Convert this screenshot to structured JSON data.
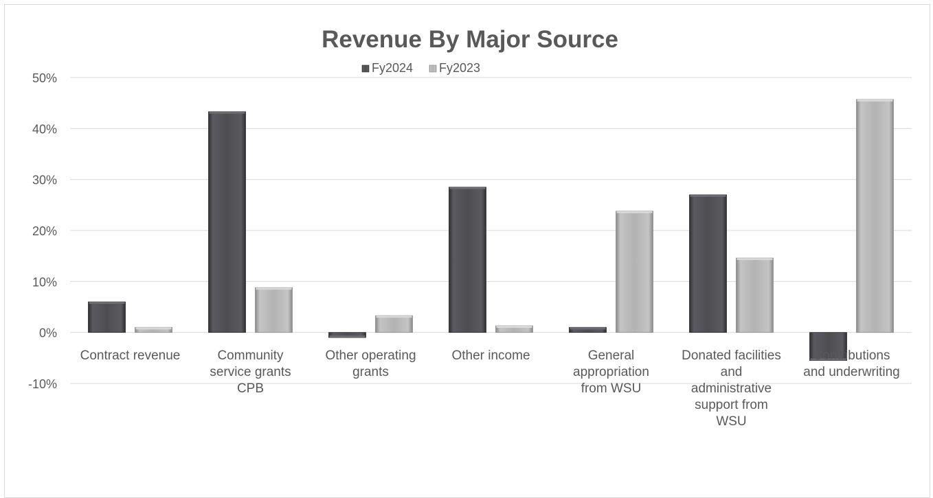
{
  "chart_data": {
    "type": "bar",
    "title": "Revenue By Major Source",
    "categories": [
      [
        "Contract revenue"
      ],
      [
        "Community",
        "service grants",
        "CPB"
      ],
      [
        "Other operating",
        "grants"
      ],
      [
        "Other income"
      ],
      [
        "General",
        "appropriation",
        "from WSU"
      ],
      [
        "Donated facilities",
        "and",
        "administrative",
        "support from",
        "WSU"
      ],
      [
        "Contributions",
        "and underwriting"
      ]
    ],
    "series": [
      {
        "name": "Fy2024",
        "values": [
          6.0,
          43.3,
          -1.0,
          28.5,
          1.0,
          27.0,
          -5.5
        ],
        "color": "#4d4d52"
      },
      {
        "name": "Fy2023",
        "values": [
          1.0,
          8.8,
          3.3,
          1.3,
          23.8,
          14.6,
          45.7
        ],
        "color": "#a6a6a6"
      }
    ],
    "yticks": [
      "50%",
      "40%",
      "30%",
      "20%",
      "10%",
      "0%",
      "-10%"
    ],
    "ylim": [
      -10,
      50
    ],
    "grid": true,
    "legend_position": "top-center"
  }
}
